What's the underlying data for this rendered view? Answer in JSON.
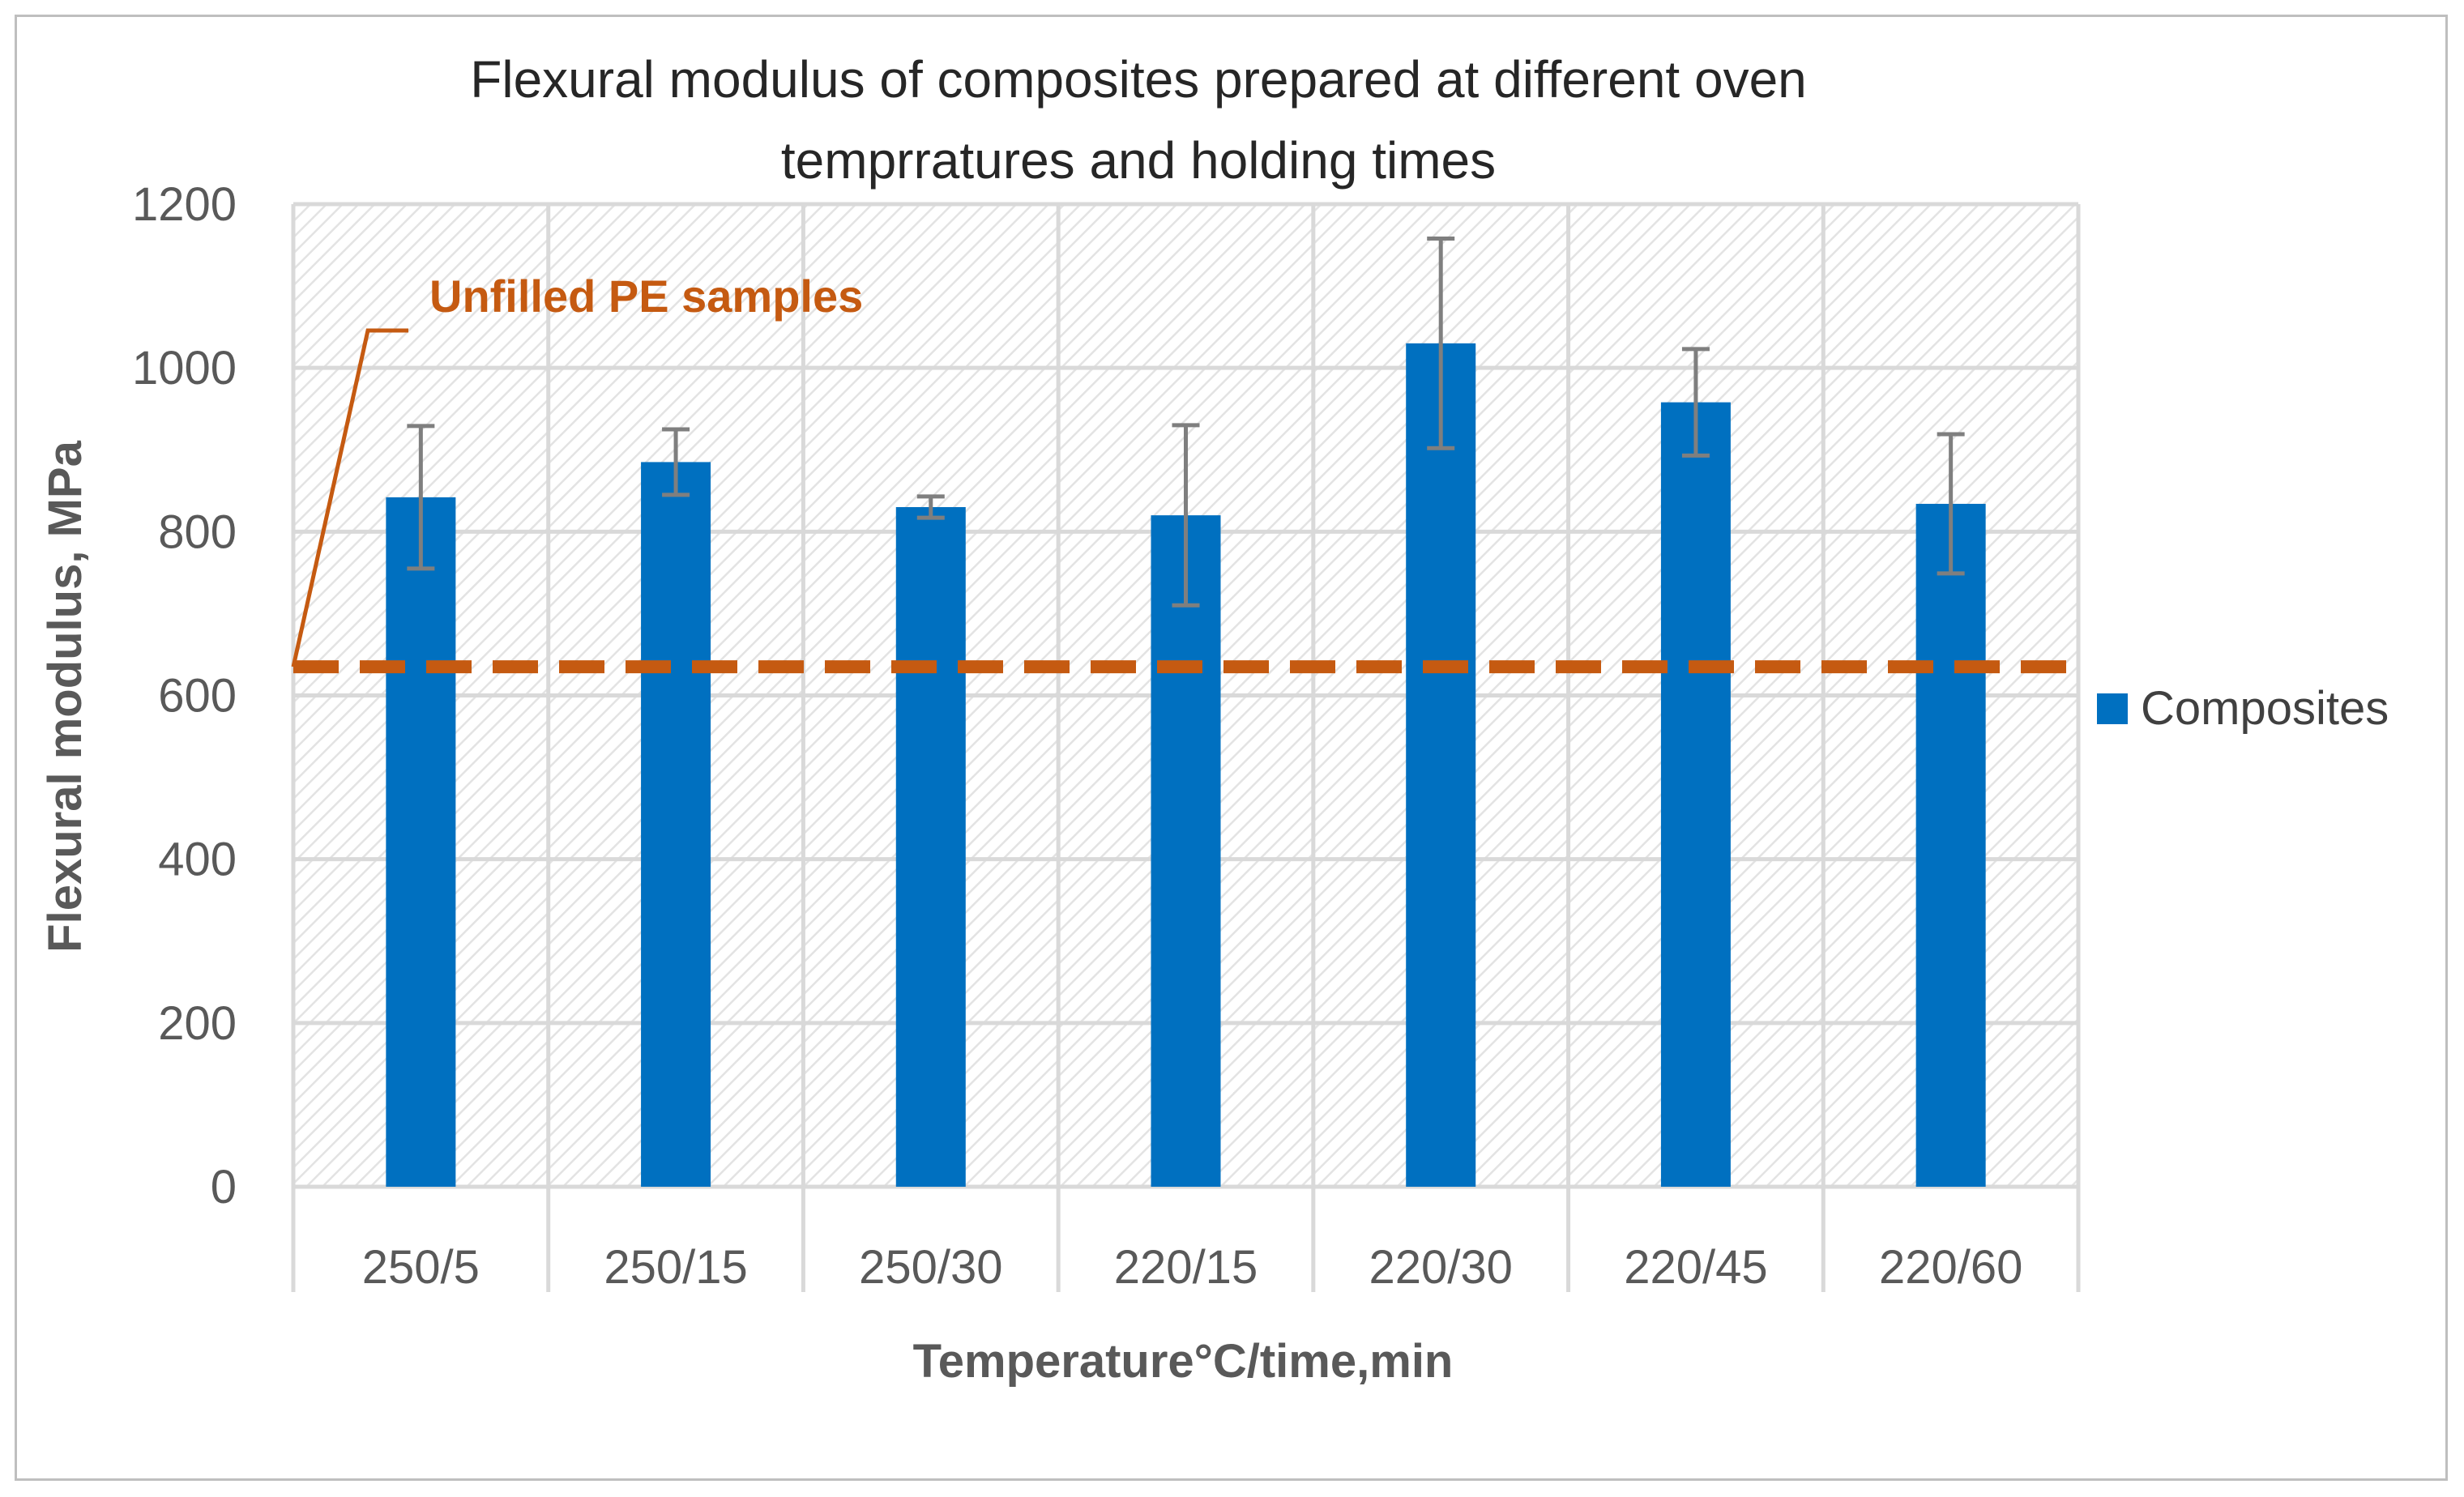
{
  "chart_data": {
    "type": "bar",
    "title_lines": [
      "Flexural modulus of composites prepared at different oven",
      "temprratures and holding times"
    ],
    "xlabel": "Temperature°C/time,min",
    "ylabel": "Flexural modulus, MPa",
    "ylim": [
      0,
      1200
    ],
    "yticks": [
      0,
      200,
      400,
      600,
      800,
      1000,
      1200
    ],
    "categories": [
      "250/5",
      "250/15",
      "250/30",
      "220/15",
      "220/30",
      "220/45",
      "220/60"
    ],
    "series": [
      {
        "name": "Composites",
        "color": "#0070c0",
        "values": [
          842,
          885,
          830,
          820,
          1030,
          958,
          834
        ],
        "error": [
          87,
          40,
          13,
          110,
          128,
          65,
          85
        ]
      }
    ],
    "reference_line": {
      "label": "Unfilled PE samples",
      "value": 635,
      "color": "#c55a11"
    },
    "grid": true,
    "legend_position": "right",
    "error_bar_color": "#7f7f7f",
    "gridline_color": "#d9d9d9"
  }
}
